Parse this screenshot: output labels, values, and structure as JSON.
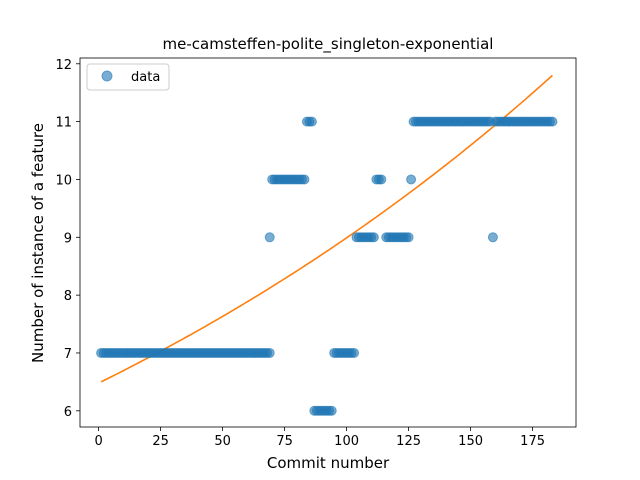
{
  "chart_data": {
    "type": "scatter",
    "title": "me-camsteffen-polite_singleton-exponential",
    "xlabel": "Commit number",
    "ylabel": "Number of instance of a feature",
    "xlim": [
      -7.5,
      192.5
    ],
    "ylim": [
      5.72,
      12.1
    ],
    "xticks": [
      0,
      25,
      50,
      75,
      100,
      125,
      150,
      175
    ],
    "yticks": [
      6,
      7,
      8,
      9,
      10,
      11,
      12
    ],
    "grid": false,
    "legend": {
      "position": "upper-left",
      "entries": [
        "data"
      ]
    },
    "colors": {
      "scatter": "#1f77b4",
      "fit": "#ff7f0e"
    },
    "series": [
      {
        "name": "data",
        "kind": "scatter",
        "segments": [
          {
            "x_start": 1,
            "x_end": 69,
            "y": 7
          },
          {
            "x_start": 69,
            "x_end": 69,
            "y": 9
          },
          {
            "x_start": 70,
            "x_end": 83,
            "y": 10
          },
          {
            "x_start": 84,
            "x_end": 86,
            "y": 11
          },
          {
            "x_start": 87,
            "x_end": 94,
            "y": 6
          },
          {
            "x_start": 95,
            "x_end": 103,
            "y": 7
          },
          {
            "x_start": 104,
            "x_end": 111,
            "y": 9
          },
          {
            "x_start": 112,
            "x_end": 114,
            "y": 10
          },
          {
            "x_start": 116,
            "x_end": 125,
            "y": 9
          },
          {
            "x_start": 126,
            "x_end": 126,
            "y": 10
          },
          {
            "x_start": 127,
            "x_end": 158,
            "y": 11
          },
          {
            "x_start": 159,
            "x_end": 159,
            "y": 9
          },
          {
            "x_start": 160,
            "x_end": 183,
            "y": 11
          }
        ]
      },
      {
        "kind": "line",
        "x": [
          1,
          25,
          50,
          75,
          100,
          125,
          150,
          165,
          183
        ],
        "y": [
          6.5,
          6.92,
          7.4,
          7.95,
          8.6,
          9.55,
          10.55,
          11.1,
          11.8
        ]
      }
    ]
  }
}
